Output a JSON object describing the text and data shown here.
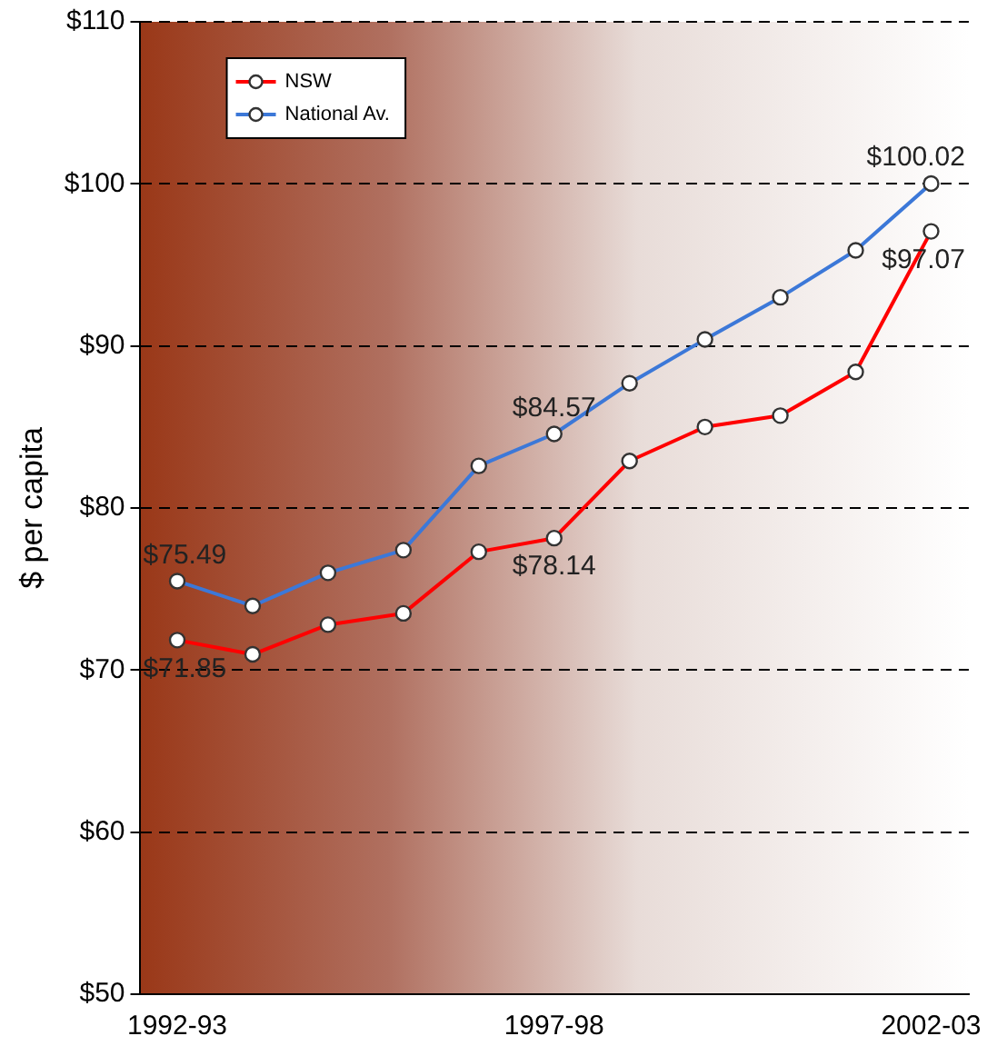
{
  "chart_data": {
    "type": "line",
    "ylabel": "$ per capita",
    "categories": [
      "1992-93",
      null,
      null,
      null,
      null,
      "1997-98",
      null,
      null,
      null,
      null,
      "2002-03"
    ],
    "series": [
      {
        "name": "NSW",
        "color": "#ff0000",
        "values": [
          71.85,
          70.97,
          72.8,
          73.5,
          77.3,
          78.14,
          82.9,
          85.0,
          85.7,
          88.4,
          97.07
        ]
      },
      {
        "name": "National Av.",
        "color": "#3c78d8",
        "values": [
          75.49,
          73.96,
          76.0,
          77.4,
          82.6,
          84.57,
          87.7,
          90.4,
          93.0,
          95.9,
          100.02
        ]
      }
    ],
    "ylim": [
      50,
      110
    ],
    "yticks": [
      {
        "value": 50,
        "label": "$50"
      },
      {
        "value": 60,
        "label": "$60"
      },
      {
        "value": 70,
        "label": "$70"
      },
      {
        "value": 80,
        "label": "$80"
      },
      {
        "value": 90,
        "label": "$90"
      },
      {
        "value": 100,
        "label": "$100"
      },
      {
        "value": 110,
        "label": "$110"
      }
    ],
    "grid": "y",
    "legend": "top left",
    "marker": "circle",
    "line_style": "solid",
    "annotations": [
      {
        "text": "$75.49",
        "x": "1992-93",
        "y": 75.49
      },
      {
        "text": "$71.85",
        "x": "1992-93",
        "y": 71.85
      },
      {
        "text": "$84.57",
        "x": "1997-98",
        "y": 84.57
      },
      {
        "text": "$78.14",
        "x": "1997-98",
        "y": 78.14
      },
      {
        "text": "$100.02",
        "x": "2002-03",
        "y": 100.02
      },
      {
        "text": "$97.07",
        "x": "2002-03",
        "y": 97.07
      }
    ]
  }
}
